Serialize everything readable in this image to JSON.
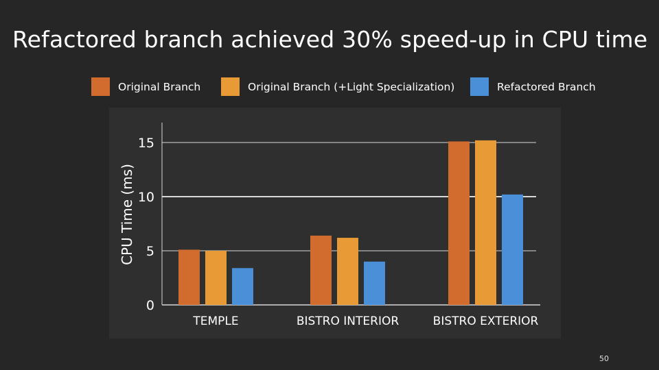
{
  "slide": {
    "title": "Refactored branch achieved 30% speed-up in CPU time",
    "page_number": "50"
  },
  "colors": {
    "background": "#262626",
    "chart_panel": "#2f2f2f",
    "gridline": "#d9d9d9",
    "text": "#ffffff"
  },
  "chart_data": {
    "type": "bar",
    "title": "",
    "xlabel": "",
    "ylabel": "CPU Time (ms)",
    "categories": [
      "TEMPLE",
      "BISTRO INTERIOR",
      "BISTRO EXTERIOR"
    ],
    "series": [
      {
        "name": "Original Branch",
        "color": "#d16b2e",
        "values": [
          5.1,
          6.4,
          15.1
        ]
      },
      {
        "name": "Original Branch (+Light Specialization)",
        "color": "#e79a35",
        "values": [
          5.0,
          6.2,
          15.2
        ]
      },
      {
        "name": "Refactored Branch",
        "color": "#4a90d9",
        "values": [
          3.4,
          4.0,
          10.2
        ]
      }
    ],
    "ylim": [
      0,
      16.5
    ],
    "yticks": [
      0,
      5,
      10,
      15
    ],
    "grid": true,
    "legend_position": "top"
  }
}
